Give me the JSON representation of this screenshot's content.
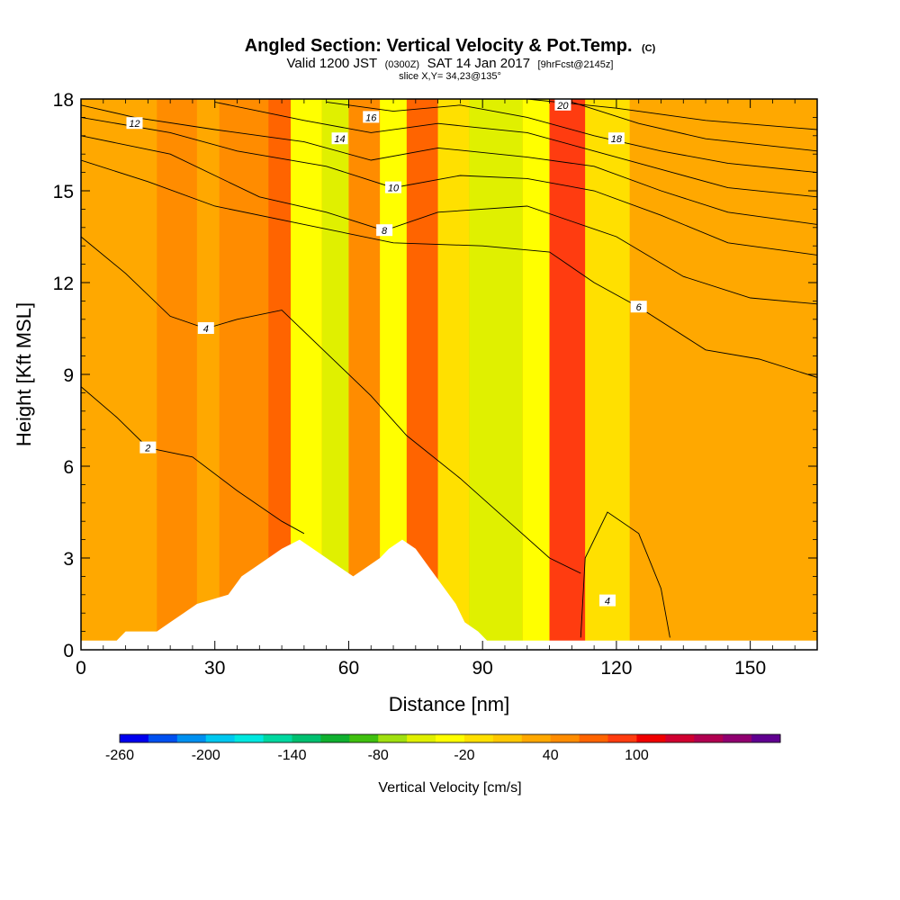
{
  "title": {
    "main": "Angled Section: Vertical Velocity & Pot.Temp.",
    "main_unit": "(C)",
    "valid_a": "Valid 1200 JST",
    "valid_z": "(0300Z)",
    "valid_b": "SAT 14 Jan 2017",
    "valid_fcst": "[9hrFcst@2145z]",
    "slice": "slice X,Y= 34,23@135°"
  },
  "chart_data": {
    "type": "heatmap",
    "xlabel": "Distance [nm]",
    "ylabel": "Height [Kft MSL]",
    "xlim": [
      0,
      165
    ],
    "ylim": [
      0,
      18
    ],
    "x_ticks": [
      {
        "value": 0,
        "label": "0"
      },
      {
        "value": 30,
        "label": "30"
      },
      {
        "value": 60,
        "label": "60"
      },
      {
        "value": 90,
        "label": "90"
      },
      {
        "value": 120,
        "label": "120"
      },
      {
        "value": 150,
        "label": "150"
      }
    ],
    "y_ticks": [
      {
        "value": 0,
        "label": "0"
      },
      {
        "value": 3,
        "label": "3"
      },
      {
        "value": 6,
        "label": "6"
      },
      {
        "value": 9,
        "label": "9"
      },
      {
        "value": 12,
        "label": "12"
      },
      {
        "value": 15,
        "label": "15"
      },
      {
        "value": 18,
        "label": "18"
      }
    ],
    "shading_variable": "Vertical Velocity [cm/s]",
    "contour_variable": "Pot.Temp. (C)",
    "colorbar": {
      "title": "Vertical Velocity [cm/s]",
      "colors": [
        "#0000ee",
        "#0050f0",
        "#0090f0",
        "#00c8f0",
        "#00e8e0",
        "#00d8a0",
        "#00c070",
        "#10b030",
        "#40c010",
        "#a0e010",
        "#e0f000",
        "#ffff00",
        "#ffe000",
        "#ffc800",
        "#ffa800",
        "#ff8c00",
        "#ff6400",
        "#ff3c10",
        "#f00000",
        "#d00030",
        "#b00050",
        "#900070",
        "#600090"
      ],
      "labels": [
        {
          "boundary": 0,
          "label": "-260"
        },
        {
          "boundary": 3,
          "label": "-200"
        },
        {
          "boundary": 6,
          "label": "-140"
        },
        {
          "boundary": 9,
          "label": "-80"
        },
        {
          "boundary": 12,
          "label": "-20"
        },
        {
          "boundary": 15,
          "label": "40"
        },
        {
          "boundary": 18,
          "label": "100"
        }
      ]
    },
    "velocity_bands": [
      {
        "x": [
          0,
          8
        ],
        "value": 30
      },
      {
        "x": [
          8,
          17
        ],
        "value": 20
      },
      {
        "x": [
          17,
          26
        ],
        "value": 40
      },
      {
        "x": [
          26,
          31
        ],
        "value": 20
      },
      {
        "x": [
          31,
          36
        ],
        "value": 50
      },
      {
        "x": [
          36,
          42
        ],
        "value": 40
      },
      {
        "x": [
          42,
          47
        ],
        "value": 70
      },
      {
        "x": [
          47,
          54
        ],
        "value": -30
      },
      {
        "x": [
          54,
          60
        ],
        "value": -50
      },
      {
        "x": [
          60,
          67
        ],
        "value": 50
      },
      {
        "x": [
          67,
          73
        ],
        "value": -30
      },
      {
        "x": [
          73,
          80
        ],
        "value": 60
      },
      {
        "x": [
          80,
          87
        ],
        "value": -10
      },
      {
        "x": [
          87,
          99
        ],
        "value": -50
      },
      {
        "x": [
          99,
          105
        ],
        "value": -30
      },
      {
        "x": [
          105,
          113
        ],
        "value": 90
      },
      {
        "x": [
          113,
          123
        ],
        "value": -20
      },
      {
        "x": [
          123,
          145
        ],
        "value": 20
      },
      {
        "x": [
          145,
          165
        ],
        "value": 30
      }
    ],
    "terrain": [
      [
        0,
        0.3
      ],
      [
        8,
        0.3
      ],
      [
        10,
        0.6
      ],
      [
        17,
        0.6
      ],
      [
        20,
        0.9
      ],
      [
        23,
        1.2
      ],
      [
        26,
        1.5
      ],
      [
        33,
        1.8
      ],
      [
        36,
        2.4
      ],
      [
        39,
        2.7
      ],
      [
        42,
        3.0
      ],
      [
        45,
        3.3
      ],
      [
        49,
        3.6
      ],
      [
        52,
        3.3
      ],
      [
        55,
        3.0
      ],
      [
        58,
        2.7
      ],
      [
        61,
        2.4
      ],
      [
        64,
        2.7
      ],
      [
        67,
        3.0
      ],
      [
        69,
        3.3
      ],
      [
        72,
        3.6
      ],
      [
        75,
        3.3
      ],
      [
        78,
        2.7
      ],
      [
        81,
        2.1
      ],
      [
        84,
        1.5
      ],
      [
        86,
        0.9
      ],
      [
        89,
        0.6
      ],
      [
        91,
        0.3
      ],
      [
        165,
        0.3
      ]
    ],
    "theta_contours": [
      {
        "label": "2",
        "label_at": [
          15,
          6.6
        ],
        "points": [
          [
            0,
            8.6
          ],
          [
            8,
            7.6
          ],
          [
            15,
            6.6
          ],
          [
            25,
            6.3
          ],
          [
            35,
            5.2
          ],
          [
            45,
            4.2
          ],
          [
            50,
            3.8
          ]
        ]
      },
      {
        "label": "4",
        "label_at": [
          28,
          10.5
        ],
        "points": [
          [
            0,
            13.5
          ],
          [
            10,
            12.3
          ],
          [
            20,
            10.9
          ],
          [
            28,
            10.5
          ],
          [
            35,
            10.8
          ],
          [
            45,
            11.1
          ],
          [
            55,
            9.7
          ],
          [
            65,
            8.3
          ],
          [
            73,
            7.0
          ],
          [
            85,
            5.6
          ],
          [
            95,
            4.3
          ],
          [
            105,
            3.0
          ],
          [
            112,
            2.5
          ]
        ]
      },
      {
        "label": "6",
        "label_at": [
          125,
          11.2
        ],
        "points": [
          [
            0,
            16.0
          ],
          [
            15,
            15.3
          ],
          [
            30,
            14.5
          ],
          [
            50,
            13.9
          ],
          [
            70,
            13.3
          ],
          [
            90,
            13.2
          ],
          [
            105,
            13.0
          ],
          [
            115,
            12.0
          ],
          [
            125,
            11.2
          ],
          [
            140,
            9.8
          ],
          [
            152,
            9.5
          ],
          [
            165,
            8.9
          ]
        ]
      },
      {
        "label": "8",
        "label_at": [
          68,
          13.7
        ],
        "points": [
          [
            0,
            16.8
          ],
          [
            20,
            16.2
          ],
          [
            40,
            14.8
          ],
          [
            55,
            14.3
          ],
          [
            68,
            13.7
          ],
          [
            80,
            14.3
          ],
          [
            100,
            14.5
          ],
          [
            110,
            14.0
          ],
          [
            120,
            13.5
          ],
          [
            135,
            12.2
          ],
          [
            150,
            11.5
          ],
          [
            165,
            11.3
          ]
        ]
      },
      {
        "label": "10",
        "label_at": [
          70,
          15.1
        ],
        "points": [
          [
            0,
            17.4
          ],
          [
            20,
            16.9
          ],
          [
            35,
            16.3
          ],
          [
            55,
            15.8
          ],
          [
            70,
            15.1
          ],
          [
            85,
            15.5
          ],
          [
            100,
            15.4
          ],
          [
            115,
            15.0
          ],
          [
            130,
            14.2
          ],
          [
            145,
            13.3
          ],
          [
            165,
            12.9
          ]
        ]
      },
      {
        "label": "12",
        "label_at": [
          12,
          17.2
        ],
        "points": [
          [
            0,
            17.8
          ],
          [
            12,
            17.4
          ],
          [
            30,
            17.0
          ],
          [
            50,
            16.6
          ],
          [
            65,
            16.0
          ],
          [
            80,
            16.4
          ],
          [
            100,
            16.1
          ],
          [
            115,
            15.8
          ],
          [
            130,
            15.0
          ],
          [
            145,
            14.3
          ],
          [
            165,
            13.9
          ]
        ]
      },
      {
        "label": "14",
        "label_at": [
          58,
          16.7
        ],
        "points": [
          [
            30,
            17.9
          ],
          [
            50,
            17.3
          ],
          [
            65,
            16.9
          ],
          [
            80,
            17.2
          ],
          [
            100,
            16.9
          ],
          [
            115,
            16.3
          ],
          [
            130,
            15.7
          ],
          [
            145,
            15.1
          ],
          [
            165,
            14.8
          ]
        ]
      },
      {
        "label": "16",
        "label_at": [
          65,
          17.4
        ],
        "points": [
          [
            55,
            17.9
          ],
          [
            70,
            17.6
          ],
          [
            85,
            17.8
          ],
          [
            100,
            17.4
          ],
          [
            115,
            16.8
          ],
          [
            130,
            16.3
          ],
          [
            145,
            15.9
          ],
          [
            165,
            15.6
          ]
        ]
      },
      {
        "label": "18",
        "label_at": [
          120,
          16.7
        ],
        "points": [
          [
            110,
            17.9
          ],
          [
            125,
            17.2
          ],
          [
            140,
            16.7
          ],
          [
            165,
            16.3
          ]
        ]
      },
      {
        "label": "20",
        "label_at": [
          108,
          17.8
        ],
        "points": [
          [
            100,
            18.0
          ],
          [
            120,
            17.7
          ],
          [
            140,
            17.3
          ],
          [
            165,
            17.0
          ]
        ]
      },
      {
        "label": "4",
        "label_at": [
          118,
          1.6
        ],
        "points": [
          [
            112,
            0.4
          ],
          [
            113,
            3.0
          ],
          [
            118,
            4.5
          ],
          [
            125,
            3.8
          ],
          [
            130,
            2.0
          ],
          [
            132,
            0.4
          ]
        ]
      }
    ]
  }
}
